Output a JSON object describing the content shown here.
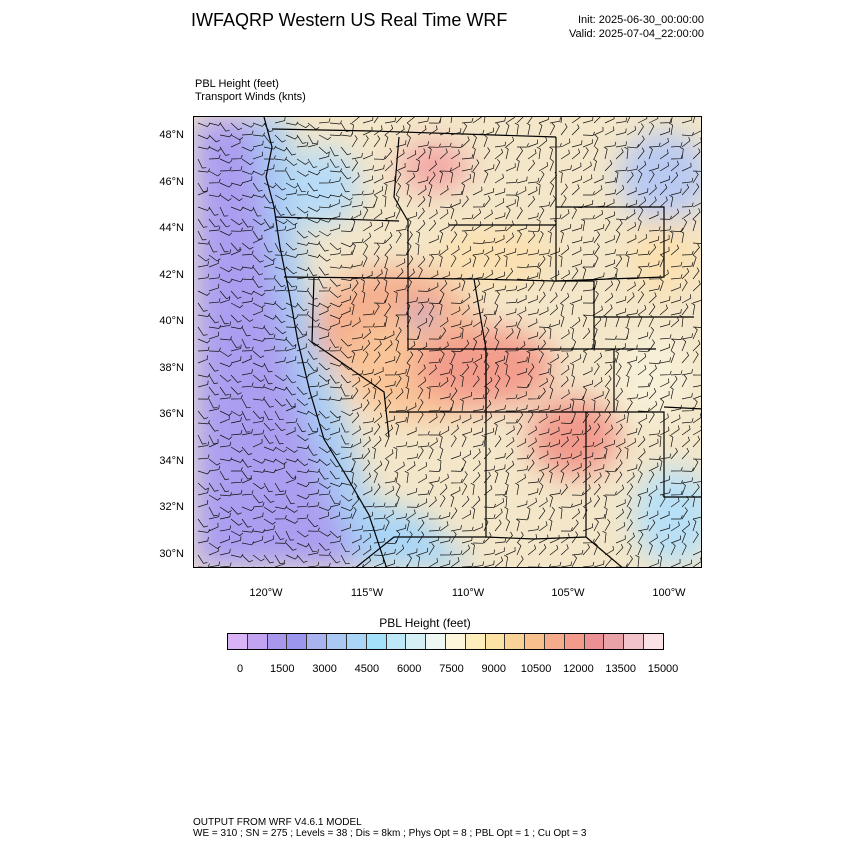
{
  "header": {
    "title": "IWFAQRP Western US Real Time WRF",
    "init": "Init: 2025-06-30_00:00:00",
    "valid": "Valid: 2025-07-04_22:00:00"
  },
  "fields": {
    "line1": "PBL Height   (feet)",
    "line2": "Transport Winds   (knts)"
  },
  "map": {
    "lat_labels": [
      "48°N",
      "46°N",
      "44°N",
      "42°N",
      "40°N",
      "38°N",
      "36°N",
      "34°N",
      "32°N",
      "30°N"
    ],
    "lon_labels": [
      "120°W",
      "115°W",
      "110°W",
      "105°W",
      "100°W"
    ]
  },
  "colorbar": {
    "title": "PBL Height  (feet)",
    "labels": [
      "0",
      "1500",
      "3000",
      "4500",
      "6000",
      "7500",
      "9000",
      "10500",
      "12000",
      "13500",
      "15000"
    ],
    "colors": [
      "#d8b3f5",
      "#c2a3f2",
      "#a997ee",
      "#9b97ee",
      "#a8b3f0",
      "#aac8f4",
      "#a9d6f6",
      "#a3e0fa",
      "#bde8f8",
      "#d5f0f5",
      "#eef8f2",
      "#fdf6da",
      "#fdeebb",
      "#fce3a4",
      "#f9d298",
      "#f8c08d",
      "#f6ac8b",
      "#f39a8a",
      "#eb9196",
      "#e8a2a8",
      "#f2c3c8",
      "#fbe2e6"
    ]
  },
  "footer": {
    "line1": "OUTPUT FROM WRF V4.6.1 MODEL",
    "line2": "WE = 310 ; SN = 275 ; Levels = 38 ; Dis = 8km ; Phys Opt = 8 ; PBL Opt = 1 ; Cu Opt = 3"
  }
}
